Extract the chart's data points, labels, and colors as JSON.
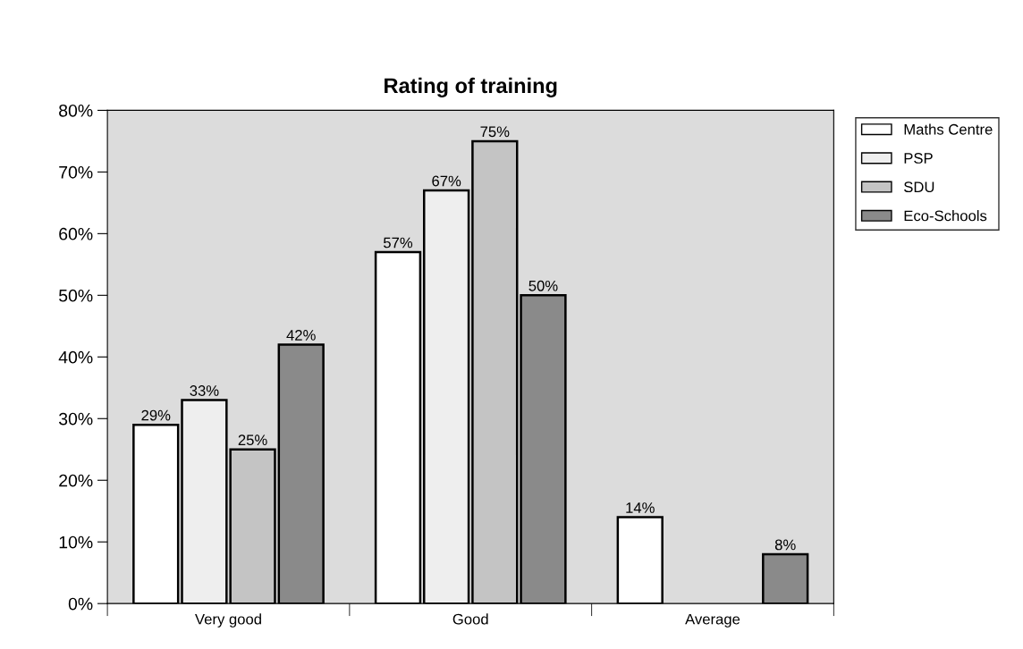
{
  "chart_data": {
    "type": "bar",
    "title": "Rating of training",
    "categories": [
      "Very good",
      "Good",
      "Average"
    ],
    "series": [
      {
        "name": "Maths Centre",
        "color": "#ffffff",
        "values": [
          29,
          57,
          14
        ],
        "value_labels": [
          "29%",
          "57%",
          "14%"
        ]
      },
      {
        "name": "PSP",
        "color": "#eeeeee",
        "values": [
          33,
          67,
          null
        ],
        "value_labels": [
          "33%",
          "67%",
          null
        ]
      },
      {
        "name": "SDU",
        "color": "#c4c4c4",
        "values": [
          25,
          75,
          null
        ],
        "value_labels": [
          "25%",
          "75%",
          null
        ]
      },
      {
        "name": "Eco-Schools",
        "color": "#8a8a8a",
        "values": [
          42,
          50,
          8
        ],
        "value_labels": [
          "42%",
          "50%",
          "8%"
        ]
      }
    ],
    "ylim": [
      0,
      80
    ],
    "yticks": [
      {
        "value": 0,
        "label": "0%"
      },
      {
        "value": 10,
        "label": "10%"
      },
      {
        "value": 20,
        "label": "20%"
      },
      {
        "value": 30,
        "label": "30%"
      },
      {
        "value": 40,
        "label": "40%"
      },
      {
        "value": 50,
        "label": "50%"
      },
      {
        "value": 60,
        "label": "60%"
      },
      {
        "value": 70,
        "label": "70%"
      },
      {
        "value": 80,
        "label": "80%"
      }
    ],
    "legend": "right",
    "grid": false
  }
}
